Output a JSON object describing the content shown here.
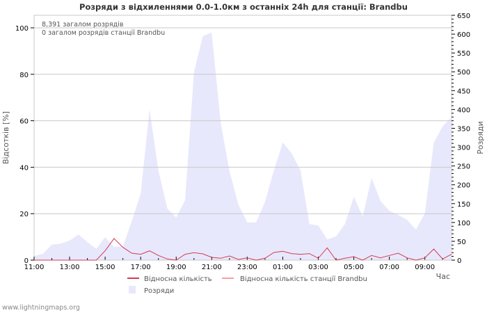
{
  "title": "Розряди з відхиленнями 0.0-1.0км з останніх 24h для станції: Brandbu",
  "info_lines": [
    "8,391 загалом розрядів",
    "0 загалом розрядів станції Brandbu"
  ],
  "footer": "www.lightningmaps.org",
  "colors": {
    "area": "#e8e8fc",
    "line_relative": "#d23c50",
    "line_station": "#f4a0a0",
    "grid": "#c8c8c8",
    "text": "#333333"
  },
  "chart_data": {
    "type": "line+area",
    "title": "Розряди з відхиленнями 0.0-1.0км з останніх 24h для станції: Brandbu",
    "xlabel": "Час",
    "ylabel_left": "Відсотків   [%]",
    "ylabel_right": "Розряди",
    "ylim_left": [
      0,
      105
    ],
    "ylim_right": [
      0,
      650
    ],
    "yticks_left": [
      0,
      20,
      40,
      60,
      80,
      100
    ],
    "yticks_right": [
      0,
      50,
      100,
      150,
      200,
      250,
      300,
      350,
      400,
      450,
      500,
      550,
      600,
      650
    ],
    "xtick_labels": [
      "11:00",
      "13:00",
      "15:00",
      "17:00",
      "19:00",
      "21:00",
      "23:00",
      "01:00",
      "03:00",
      "05:00",
      "07:00",
      "09:00"
    ],
    "grid": true,
    "legend": [
      "Відносна кількість",
      "Відносна кількість станції Brandbu",
      "Розряди"
    ],
    "legend_position": "bottom",
    "x": [
      "11:00",
      "11:30",
      "12:00",
      "12:30",
      "13:00",
      "13:30",
      "14:00",
      "14:30",
      "15:00",
      "15:30",
      "16:00",
      "16:30",
      "17:00",
      "17:30",
      "18:00",
      "18:30",
      "19:00",
      "19:30",
      "20:00",
      "20:30",
      "21:00",
      "21:30",
      "22:00",
      "22:30",
      "23:00",
      "23:30",
      "00:00",
      "00:30",
      "01:00",
      "01:30",
      "02:00",
      "02:30",
      "03:00",
      "03:30",
      "04:00",
      "04:30",
      "05:00",
      "05:30",
      "06:00",
      "06:30",
      "07:00",
      "07:30",
      "08:00",
      "08:30",
      "09:00",
      "09:30",
      "10:00",
      "10:30"
    ],
    "series": [
      {
        "name": "Розряди",
        "axis": "right",
        "type": "area",
        "values": [
          11,
          17,
          41,
          44,
          52,
          68,
          48,
          30,
          61,
          35,
          37,
          103,
          177,
          400,
          238,
          137,
          113,
          159,
          499,
          595,
          604,
          366,
          236,
          148,
          100,
          100,
          155,
          238,
          312,
          284,
          238,
          96,
          92,
          55,
          63,
          96,
          168,
          116,
          218,
          157,
          131,
          120,
          107,
          81,
          124,
          312,
          355,
          380
        ]
      },
      {
        "name": "Відносна кількість",
        "axis": "left",
        "type": "line",
        "values": [
          0,
          0,
          0,
          0,
          0,
          0,
          0,
          0,
          4,
          9.3,
          5.5,
          3,
          2.5,
          4,
          2,
          0.5,
          0,
          2.5,
          3.2,
          2.7,
          1.2,
          0.8,
          1.8,
          0.3,
          1,
          0,
          0.8,
          3.3,
          3.8,
          2.8,
          2.5,
          2.8,
          0.8,
          5.3,
          0,
          0.8,
          1.5,
          0,
          2,
          1,
          2,
          3,
          1,
          0,
          1,
          4.8,
          0.5,
          2.5
        ]
      },
      {
        "name": "Відносна кількість станції Brandbu",
        "axis": "left",
        "type": "line",
        "values": [
          0,
          0,
          0,
          0,
          0,
          0,
          0,
          0,
          0,
          0,
          0,
          0,
          0,
          0,
          0,
          0,
          0,
          0,
          0,
          0,
          0,
          0,
          0,
          0,
          0,
          0,
          0,
          0,
          0,
          0,
          0,
          0,
          0,
          0,
          0,
          0,
          0,
          0,
          0,
          0,
          0,
          0,
          0,
          0,
          0,
          0,
          0,
          0
        ]
      }
    ]
  }
}
